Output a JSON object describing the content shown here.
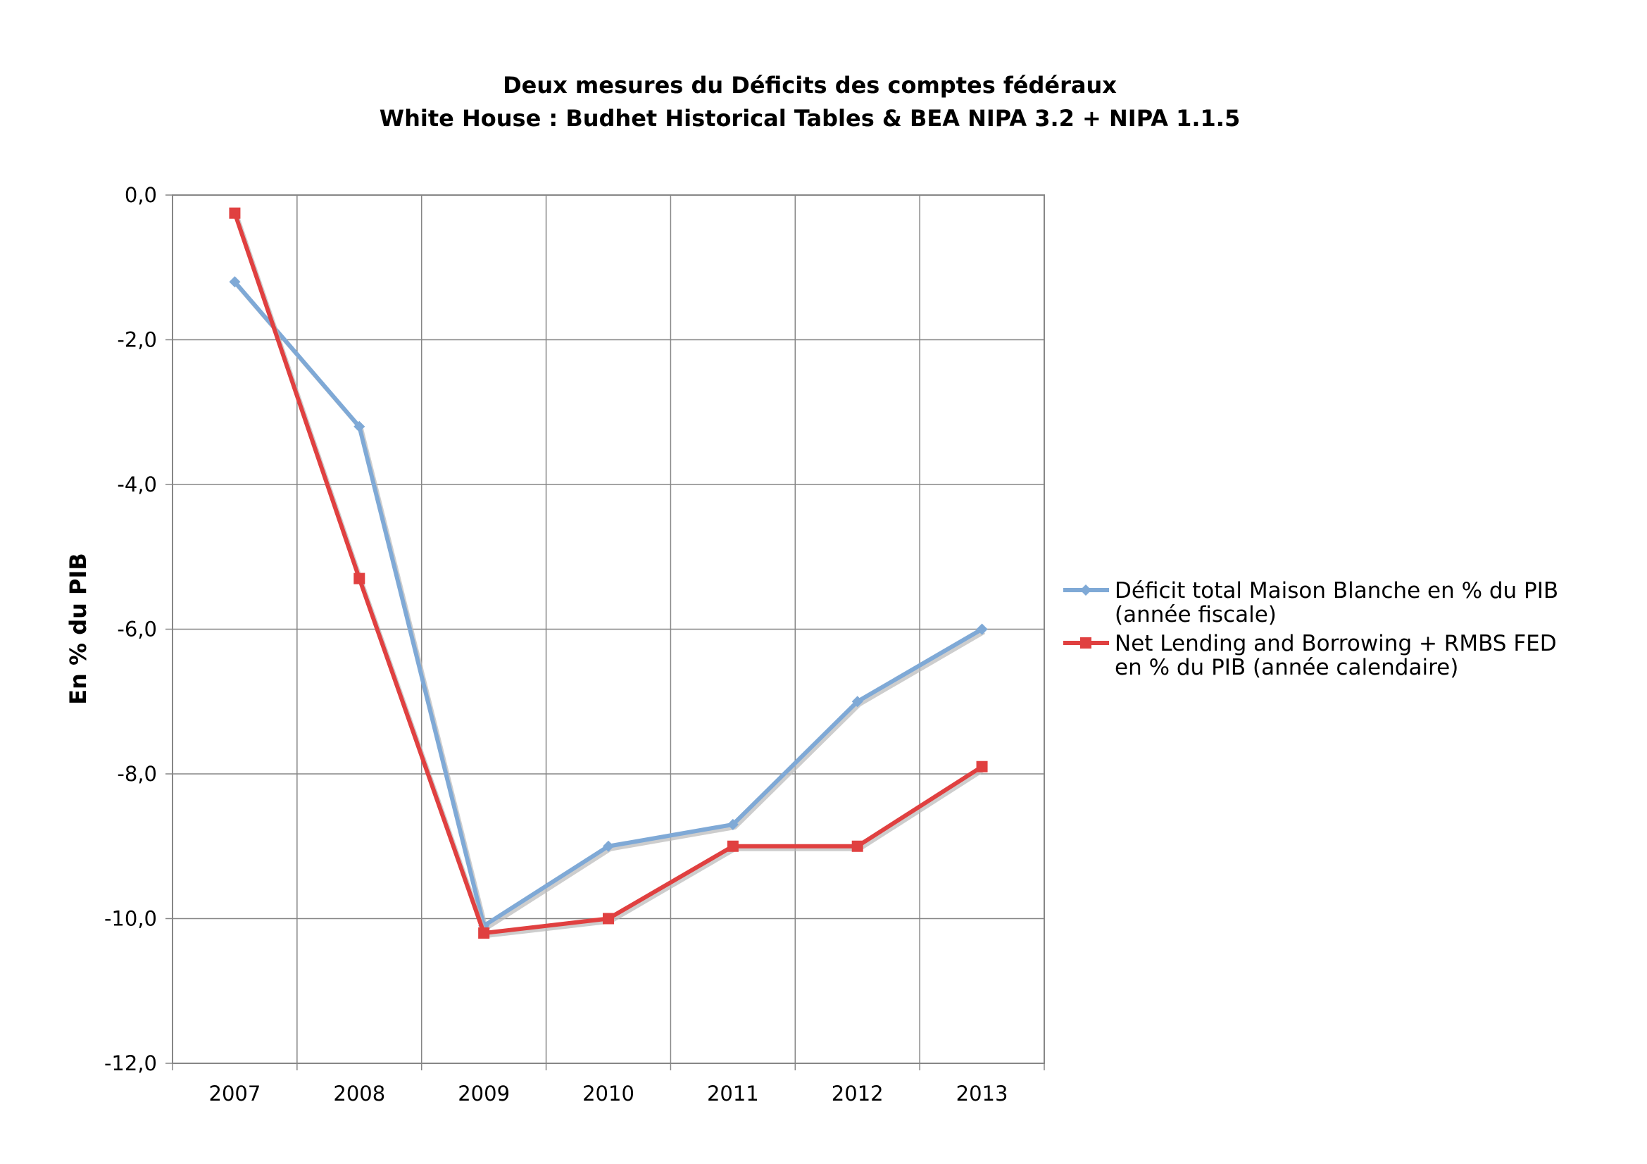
{
  "chart_data": {
    "type": "line",
    "title": "Deux mesures du Déficits des comptes fédéraux",
    "subtitle": "White House : Budhet Historical Tables & BEA NIPA 3.2 + NIPA 1.1.5",
    "ylabel": "En % du PIB",
    "xlabel": "",
    "categories": [
      "2007",
      "2008",
      "2009",
      "2010",
      "2011",
      "2012",
      "2013"
    ],
    "ylim": [
      -12,
      0
    ],
    "ytick_values": [
      0,
      -2,
      -4,
      -6,
      -8,
      -10,
      -12
    ],
    "ytick_labels": [
      "0,0",
      "-2,0",
      "-4,0",
      "-6,0",
      "-8,0",
      "-10,0",
      "-12,0"
    ],
    "grid": true,
    "legend_position": "right",
    "series": [
      {
        "name_line1": "Déficit total Maison Blanche en % du PIB",
        "name_line2": "(année fiscale)",
        "color": "#7fa9d6",
        "marker": "diamond",
        "values": [
          -1.2,
          -3.2,
          -10.1,
          -9.0,
          -8.7,
          -7.0,
          -6.0
        ]
      },
      {
        "name_line1": "Net Lending and Borrowing + RMBS FED",
        "name_line2": "en % du PIB (année calendaire)",
        "color": "#e04040",
        "marker": "square",
        "values": [
          -0.25,
          -5.3,
          -10.2,
          -10.0,
          -9.0,
          -9.0,
          -7.9
        ]
      }
    ]
  }
}
